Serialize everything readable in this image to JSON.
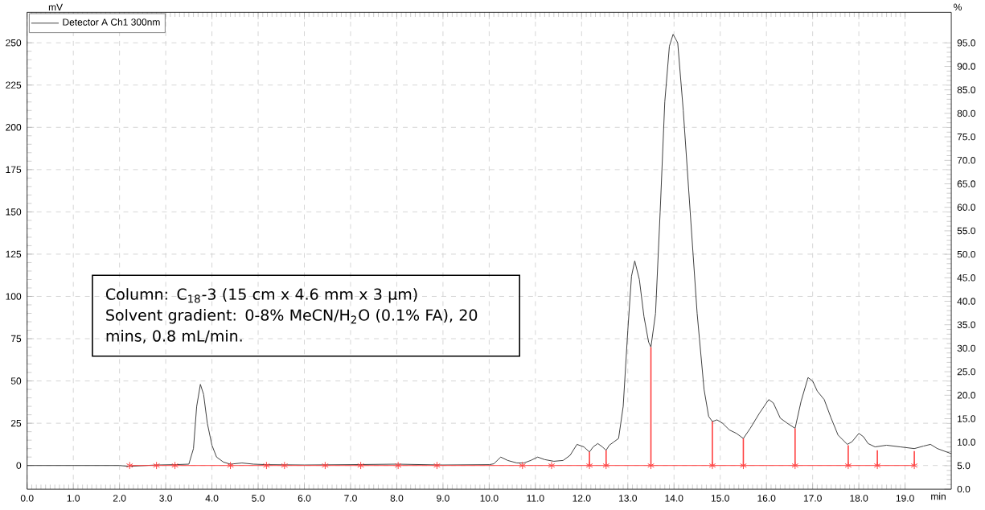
{
  "chart_data": {
    "type": "line",
    "xlabel": "min",
    "ylabel": "mV",
    "y2label": "%",
    "xlim": [
      0,
      20
    ],
    "ylim": [
      -14,
      268
    ],
    "y2lim": [
      0,
      101.5
    ],
    "xticks": [
      {
        "value": 0,
        "label": "0.0"
      },
      {
        "value": 1,
        "label": "1.0"
      },
      {
        "value": 2,
        "label": "2.0"
      },
      {
        "value": 3,
        "label": "3.0"
      },
      {
        "value": 4,
        "label": "4.0"
      },
      {
        "value": 5,
        "label": "5.0"
      },
      {
        "value": 6,
        "label": "6.0"
      },
      {
        "value": 7,
        "label": "7.0"
      },
      {
        "value": 8,
        "label": "8.0"
      },
      {
        "value": 9,
        "label": "9.0"
      },
      {
        "value": 10,
        "label": "10.0"
      },
      {
        "value": 11,
        "label": "11.0"
      },
      {
        "value": 12,
        "label": "12.0"
      },
      {
        "value": 13,
        "label": "13.0"
      },
      {
        "value": 14,
        "label": "14.0"
      },
      {
        "value": 15,
        "label": "15.0"
      },
      {
        "value": 16,
        "label": "16.0"
      },
      {
        "value": 17,
        "label": "17.0"
      },
      {
        "value": 18,
        "label": "18.0"
      },
      {
        "value": 19,
        "label": "19.0"
      }
    ],
    "yticks": [
      0,
      25,
      50,
      75,
      100,
      125,
      150,
      175,
      200,
      225,
      250
    ],
    "y2ticks": [
      {
        "value": 0,
        "label": "0.0"
      },
      {
        "value": 5,
        "label": "5.0"
      },
      {
        "value": 10,
        "label": "10.0"
      },
      {
        "value": 15,
        "label": "15.0"
      },
      {
        "value": 20,
        "label": "20.0"
      },
      {
        "value": 25,
        "label": "25.0"
      },
      {
        "value": 30,
        "label": "30.0"
      },
      {
        "value": 35,
        "label": "35.0"
      },
      {
        "value": 40,
        "label": "40.0"
      },
      {
        "value": 45,
        "label": "45.0"
      },
      {
        "value": 50,
        "label": "50.0"
      },
      {
        "value": 55,
        "label": "55.0"
      },
      {
        "value": 60,
        "label": "60.0"
      },
      {
        "value": 65,
        "label": "65.0"
      },
      {
        "value": 70,
        "label": "70.0"
      },
      {
        "value": 75,
        "label": "75.0"
      },
      {
        "value": 80,
        "label": "80.0"
      },
      {
        "value": 85,
        "label": "85.0"
      },
      {
        "value": 90,
        "label": "90.0"
      },
      {
        "value": 95,
        "label": "95.0"
      }
    ],
    "grid": true,
    "legend": "top left",
    "annotations": [
      "Column: C$_{18}$-3 (15 cm x 4.6 mm x 3 µm)",
      "Solvent gradient: 0-8% MeCN/H$_{2}$O (0.1% FA), 20 mins, 0.8 mL/min."
    ],
    "series": [
      {
        "name": "Detector A Ch1 300nm",
        "color": "#404040",
        "marker": "none",
        "x": [
          0,
          2.0,
          2.2,
          2.8,
          3.2,
          3.5,
          3.6,
          3.67,
          3.75,
          3.82,
          3.9,
          4.0,
          4.1,
          4.25,
          4.4,
          4.65,
          4.9,
          5.2,
          6,
          7,
          8,
          9,
          10,
          10.1,
          10.25,
          10.4,
          10.6,
          10.75,
          10.9,
          11.05,
          11.2,
          11.4,
          11.6,
          11.75,
          11.9,
          12.05,
          12.17,
          12.25,
          12.35,
          12.45,
          12.53,
          12.6,
          12.7,
          12.8,
          12.9,
          13.0,
          13.08,
          13.15,
          13.25,
          13.35,
          13.45,
          13.5,
          13.6,
          13.7,
          13.8,
          13.9,
          13.98,
          14.08,
          14.2,
          14.35,
          14.5,
          14.65,
          14.75,
          14.83,
          14.93,
          15.05,
          15.2,
          15.35,
          15.5,
          15.65,
          15.85,
          16.05,
          16.15,
          16.3,
          16.45,
          16.62,
          16.75,
          16.9,
          17.0,
          17.1,
          17.25,
          17.4,
          17.55,
          17.75,
          17.85,
          18.0,
          18.1,
          18.2,
          18.35,
          18.6,
          18.9,
          19.2,
          19.4,
          19.55,
          19.7,
          20
        ],
        "values": [
          0,
          0,
          -0.5,
          0.3,
          0.5,
          0.8,
          10,
          35,
          48,
          42,
          25,
          12,
          5,
          2,
          0.8,
          1.5,
          0.8,
          0.5,
          0.3,
          0.5,
          0.8,
          0.3,
          0.5,
          1,
          5,
          3,
          1.5,
          1.5,
          3,
          5,
          3.5,
          2.5,
          3,
          6,
          12.5,
          11,
          8,
          11,
          13,
          11,
          9,
          12,
          14,
          16,
          35,
          80,
          112,
          121,
          110,
          88,
          73,
          70,
          90,
          150,
          215,
          248,
          255,
          250,
          210,
          150,
          90,
          45,
          29,
          26,
          27,
          25,
          21,
          19,
          16,
          22,
          31,
          39,
          37,
          28,
          25,
          22,
          38,
          52,
          50,
          44,
          39,
          28,
          18,
          12.5,
          14,
          19,
          17,
          13,
          11,
          12,
          11,
          10,
          11.5,
          12.5,
          10,
          7
        ]
      },
      {
        "type": "bar",
        "color": "#ff4040",
        "x": [
          12.17,
          12.53,
          13.5,
          14.83,
          15.5,
          16.62,
          17.77,
          18.4,
          19.2
        ],
        "values": [
          8,
          9,
          70,
          26,
          16,
          22,
          12,
          9,
          8.5
        ]
      },
      {
        "color": "#ff4040",
        "marker": "cross",
        "x": [
          2.22,
          2.8,
          3.2,
          4.4,
          5.18,
          5.57,
          6.45,
          7.22,
          8.03,
          8.87,
          10.72,
          11.35,
          12.17,
          12.53,
          13.5,
          14.83,
          15.5,
          16.62,
          17.77,
          18.4,
          19.2
        ],
        "values": [
          0,
          0,
          0,
          0,
          0,
          0,
          0,
          0,
          0,
          0,
          0,
          0,
          0,
          0,
          0,
          0,
          0,
          0,
          0,
          0,
          0
        ]
      }
    ]
  }
}
